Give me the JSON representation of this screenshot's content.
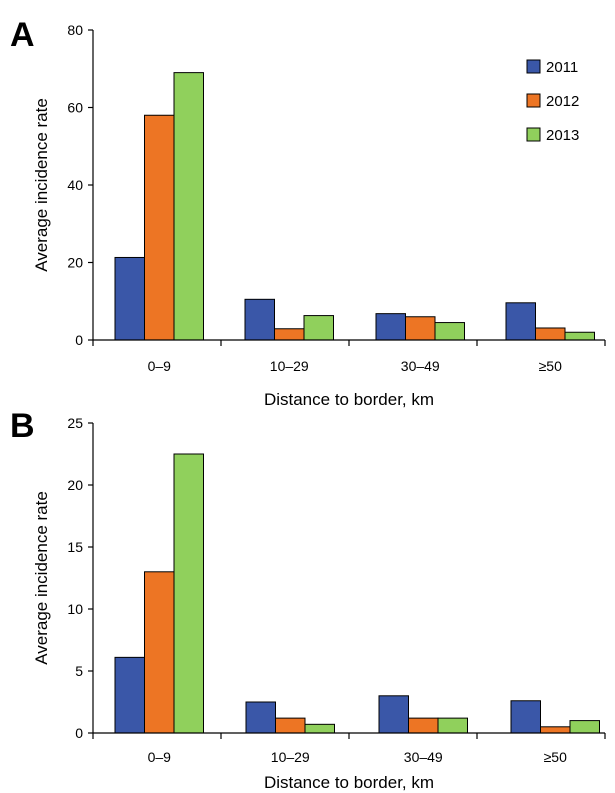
{
  "series_colors": [
    "#3a57a8",
    "#ed7524",
    "#90d05c"
  ],
  "chart_data": [
    {
      "type": "bar",
      "panel_label": "A",
      "categories": [
        "0–9",
        "10–29",
        "30–49",
        "≥50"
      ],
      "series": [
        {
          "name": "2011",
          "values": [
            21.3,
            10.5,
            6.8,
            9.6
          ]
        },
        {
          "name": "2012",
          "values": [
            58.0,
            2.9,
            6.0,
            3.1
          ]
        },
        {
          "name": "2013",
          "values": [
            69.0,
            6.3,
            4.5,
            2.0
          ]
        }
      ],
      "title": "",
      "xlabel": "Distance to border, km",
      "ylabel": "Average incidence rate",
      "ylim": [
        0,
        80
      ],
      "yticks": [
        "0",
        "20",
        "40",
        "60",
        "80"
      ],
      "legend_position": "top-right",
      "grid": false
    },
    {
      "type": "bar",
      "panel_label": "B",
      "categories": [
        "0–9",
        "10–29",
        "30–49",
        "≥50"
      ],
      "series": [
        {
          "name": "2011",
          "values": [
            6.1,
            2.5,
            3.0,
            2.6
          ]
        },
        {
          "name": "2012",
          "values": [
            13.0,
            1.2,
            1.2,
            0.5
          ]
        },
        {
          "name": "2013",
          "values": [
            22.5,
            0.7,
            1.2,
            1.0
          ]
        }
      ],
      "title": "",
      "xlabel": "Distance to border, km",
      "ylabel": "Average incidence rate",
      "ylim": [
        0,
        25
      ],
      "yticks": [
        "0",
        "5",
        "10",
        "15",
        "20",
        "25"
      ],
      "legend_position": "none",
      "grid": false
    }
  ]
}
